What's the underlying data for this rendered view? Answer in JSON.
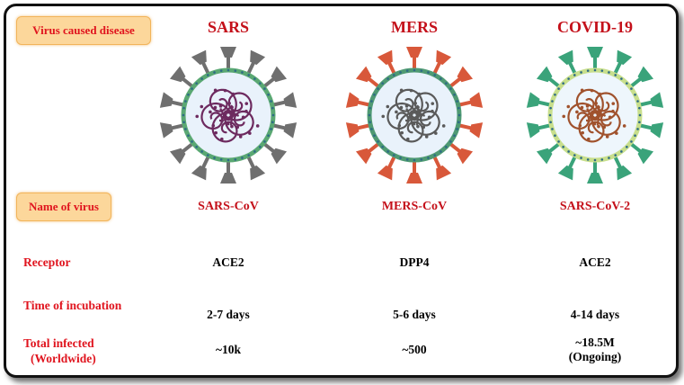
{
  "row_labels": {
    "disease": "Virus caused disease",
    "virus_name": "Name of virus",
    "receptor": "Receptor",
    "incubation": "Time of incubation",
    "infected_line1": "Total infected",
    "infected_line2": "(Worldwide)"
  },
  "columns": [
    {
      "disease": "SARS",
      "virus": "SARS-CoV",
      "receptor": "ACE2",
      "incubation": "2-7 days",
      "infected": "~10k",
      "infected_note": ""
    },
    {
      "disease": "MERS",
      "virus": "MERS-CoV",
      "receptor": "DPP4",
      "incubation": "5-6 days",
      "infected": "~500",
      "infected_note": ""
    },
    {
      "disease": "COVID-19",
      "virus": "SARS-CoV-2",
      "receptor": "ACE2",
      "incubation": "4-14 days",
      "infected": "~18.5M",
      "infected_note": "(Ongoing)"
    }
  ],
  "virus_colors": [
    {
      "spike": "#6f6f6f",
      "membrane": "#5aa873",
      "rna": "#6d2a5f",
      "core": "#e9f2fb"
    },
    {
      "spike": "#d8583a",
      "membrane": "#4f9a73",
      "rna": "#5a5a5a",
      "core": "#e9f2fb"
    },
    {
      "spike": "#3aa37a",
      "membrane": "#c8df8c",
      "rna": "#a0522d",
      "core": "#eef6fc"
    }
  ]
}
